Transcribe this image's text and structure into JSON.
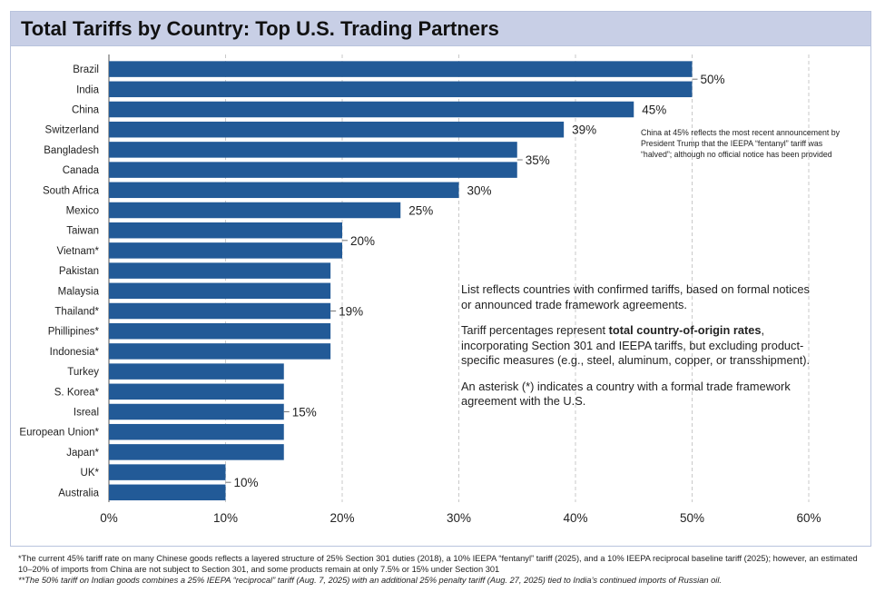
{
  "title": "Total Tariffs by Country: Top U.S. Trading Partners",
  "colors": {
    "bar": "#225a97",
    "grid": "#c9c9c9",
    "title_band": "#c8cfe6"
  },
  "chart_data": {
    "type": "bar",
    "orientation": "horizontal",
    "title": "Total Tariffs by Country: Top U.S. Trading Partners",
    "xlabel": "",
    "ylabel": "",
    "xlim": [
      0,
      60
    ],
    "x_ticks": [
      0,
      10,
      20,
      30,
      40,
      50,
      60
    ],
    "x_tick_labels": [
      "0%",
      "10%",
      "20%",
      "30%",
      "40%",
      "50%",
      "60%"
    ],
    "grid": "vertical dashed",
    "categories": [
      "Brazil",
      "India",
      "China",
      "Switzerland",
      "Bangladesh",
      "Canada",
      "South Africa",
      "Mexico",
      "Taiwan",
      "Vietnam*",
      "Pakistan",
      "Malaysia",
      "Thailand*",
      "Phillipines*",
      "Indonesia*",
      "Turkey",
      "S. Korea*",
      "Isreal",
      "European Union*",
      "Japan*",
      "UK*",
      "Australia"
    ],
    "values": [
      50,
      50,
      45,
      39,
      35,
      35,
      30,
      25,
      20,
      20,
      19,
      19,
      19,
      19,
      19,
      15,
      15,
      15,
      15,
      15,
      10,
      10
    ],
    "data_labels": [
      {
        "text": "50%",
        "first": 0,
        "last": 1
      },
      {
        "text": "45%",
        "first": 2,
        "last": 2
      },
      {
        "text": "39%",
        "first": 3,
        "last": 3
      },
      {
        "text": "35%",
        "first": 4,
        "last": 5
      },
      {
        "text": "30%",
        "first": 6,
        "last": 6
      },
      {
        "text": "25%",
        "first": 7,
        "last": 7
      },
      {
        "text": "20%",
        "first": 8,
        "last": 9
      },
      {
        "text": "19%",
        "first": 10,
        "last": 14
      },
      {
        "text": "15%",
        "first": 15,
        "last": 19
      },
      {
        "text": "10%",
        "first": 20,
        "last": 21
      }
    ]
  },
  "annotations": {
    "china_note": "China at 45% reflects the most recent announcement by President Trump that the IEEPA “fentanyl” tariff was “halved”; although no official notice has been provided",
    "list_note": "List reflects countries with confirmed tariffs, based on formal notices or announced trade framework agreements.",
    "rates_note_pre": "Tariff percentages represent ",
    "rates_note_bold": "total country-of-origin rates",
    "rates_note_post": ", incorporating Section 301 and IEEPA tariffs, but excluding product-specific measures (e.g., steel, aluminum, copper, or transshipment).",
    "asterisk_note": "An asterisk (*) indicates a country with a formal trade framework agreement with the U.S."
  },
  "footnotes": {
    "china": "*The current 45% tariff rate on many Chinese goods reflects a layered structure of 25% Section 301 duties (2018), a 10% IEEPA “fentanyl” tariff (2025), and a 10% IEEPA reciprocal baseline tariff (2025); however, an estimated 10–20% of imports from China are not subject to Section 301, and some products remain at only 7.5% or 15% under Section 301",
    "india": "**The 50% tariff on Indian goods combines a 25% IEEPA “reciprocal” tariff (Aug. 7, 2025) with an additional 25% penalty tariff (Aug. 27, 2025) tied to India’s continued imports of Russian oil."
  }
}
